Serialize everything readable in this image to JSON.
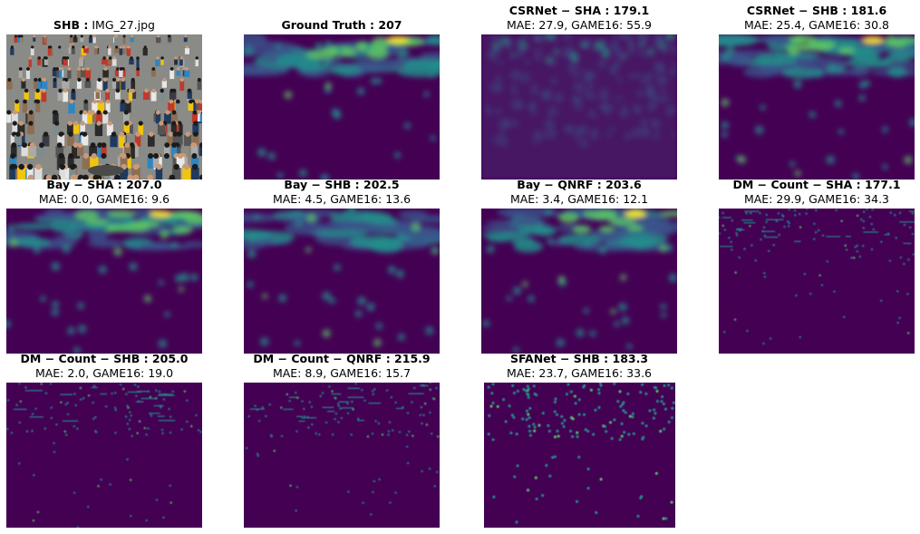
{
  "panels": [
    {
      "id": "input",
      "title_bold": "SHB :",
      "title_plain": "IMG_27.jpg",
      "subtitle": ""
    },
    {
      "id": "gt",
      "title_bold": "Ground Truth : 207",
      "title_plain": "",
      "subtitle": ""
    },
    {
      "id": "csrnet-sha",
      "title_bold": "CSRNet − SHA : 179.1",
      "title_plain": "",
      "subtitle": "MAE: 27.9, GAME16: 55.9"
    },
    {
      "id": "csrnet-shb",
      "title_bold": "CSRNet − SHB : 181.6",
      "title_plain": "",
      "subtitle": "MAE: 25.4, GAME16: 30.8"
    },
    {
      "id": "bay-sha",
      "title_bold": "Bay − SHA : 207.0",
      "title_plain": "",
      "subtitle": "MAE: 0.0, GAME16: 9.6"
    },
    {
      "id": "bay-shb",
      "title_bold": "Bay − SHB : 202.5",
      "title_plain": "",
      "subtitle": "MAE: 4.5, GAME16: 13.6"
    },
    {
      "id": "bay-qnrf",
      "title_bold": "Bay − QNRF : 203.6",
      "title_plain": "",
      "subtitle": "MAE: 3.4, GAME16: 12.1"
    },
    {
      "id": "dm-sha",
      "title_bold": "DM − Count − SHA : 177.1",
      "title_plain": "",
      "subtitle": "MAE: 29.9, GAME16: 34.3"
    },
    {
      "id": "dm-shb",
      "title_bold": "DM − Count − SHB : 205.0",
      "title_plain": "",
      "subtitle": "MAE: 2.0, GAME16: 19.0"
    },
    {
      "id": "dm-qnrf",
      "title_bold": "DM − Count − QNRF : 215.9",
      "title_plain": "",
      "subtitle": "MAE: 8.9, GAME16: 15.7"
    },
    {
      "id": "sfanet-shb",
      "title_bold": "SFANet − SHB : 183.3",
      "title_plain": "",
      "subtitle": "MAE: 23.7, GAME16: 33.6"
    }
  ],
  "colors": {
    "map_background": "#440154",
    "map_low": "#3b528b",
    "map_mid": "#21918c",
    "map_high": "#5ec962",
    "map_peak": "#fde725"
  }
}
